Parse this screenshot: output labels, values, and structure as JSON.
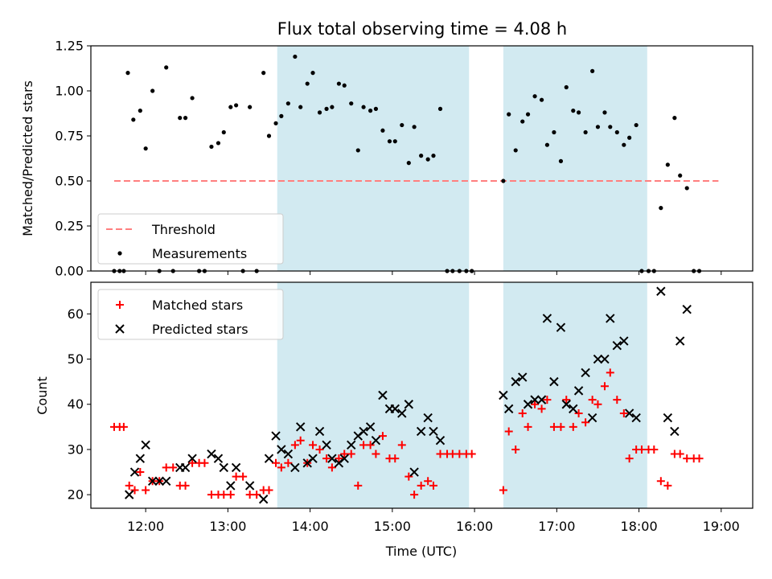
{
  "chart_data": [
    {
      "type": "scatter",
      "title": "Flux total observing time = 4.08 h",
      "ylabel": "Matched/Predicted stars",
      "xlabel": "",
      "ylim": [
        0,
        1.25
      ],
      "xlim": [
        "11:20",
        "19:23"
      ],
      "yticks": [
        "0.00",
        "0.25",
        "0.50",
        "0.75",
        "1.00",
        "1.25"
      ],
      "xticks": [
        "12:00",
        "13:00",
        "14:00",
        "15:00",
        "16:00",
        "17:00",
        "18:00",
        "19:00"
      ],
      "shaded_intervals": [
        [
          "13:36",
          "15:56"
        ],
        [
          "16:21",
          "18:06"
        ]
      ],
      "shade_color": "#add8e6",
      "legend_position": "lower-left",
      "series": [
        {
          "name": "Threshold",
          "style": "dashed-line",
          "color": "#ff7f7f",
          "points": [
            [
              "11:37",
              0.5
            ],
            [
              "18:58",
              0.5
            ]
          ]
        },
        {
          "name": "Measurements",
          "style": "dot",
          "color": "#000000",
          "points": [
            [
              "11:37",
              0.0
            ],
            [
              "11:41",
              0.0
            ],
            [
              "11:44",
              0.0
            ],
            [
              "11:47",
              1.1
            ],
            [
              "11:51",
              0.84
            ],
            [
              "11:56",
              0.89
            ],
            [
              "12:00",
              0.68
            ],
            [
              "12:05",
              1.0
            ],
            [
              "12:10",
              0.0
            ],
            [
              "12:15",
              1.13
            ],
            [
              "12:20",
              0.0
            ],
            [
              "12:25",
              0.85
            ],
            [
              "12:29",
              0.85
            ],
            [
              "12:34",
              0.96
            ],
            [
              "12:39",
              0.0
            ],
            [
              "12:43",
              0.0
            ],
            [
              "12:48",
              0.69
            ],
            [
              "12:53",
              0.71
            ],
            [
              "12:57",
              0.77
            ],
            [
              "13:02",
              0.91
            ],
            [
              "13:06",
              0.92
            ],
            [
              "13:11",
              0.0
            ],
            [
              "13:16",
              0.91
            ],
            [
              "13:21",
              0.0
            ],
            [
              "13:26",
              1.1
            ],
            [
              "13:30",
              0.75
            ],
            [
              "13:35",
              0.82
            ],
            [
              "13:39",
              0.86
            ],
            [
              "13:44",
              0.93
            ],
            [
              "13:49",
              1.19
            ],
            [
              "13:53",
              0.91
            ],
            [
              "13:58",
              1.04
            ],
            [
              "14:02",
              1.1
            ],
            [
              "14:07",
              0.88
            ],
            [
              "14:12",
              0.9
            ],
            [
              "14:16",
              0.91
            ],
            [
              "14:21",
              1.04
            ],
            [
              "14:25",
              1.03
            ],
            [
              "14:30",
              0.93
            ],
            [
              "14:35",
              0.67
            ],
            [
              "14:39",
              0.91
            ],
            [
              "14:44",
              0.89
            ],
            [
              "14:48",
              0.9
            ],
            [
              "14:53",
              0.78
            ],
            [
              "14:58",
              0.72
            ],
            [
              "15:02",
              0.72
            ],
            [
              "15:07",
              0.81
            ],
            [
              "15:12",
              0.6
            ],
            [
              "15:16",
              0.8
            ],
            [
              "15:21",
              0.64
            ],
            [
              "15:26",
              0.62
            ],
            [
              "15:30",
              0.64
            ],
            [
              "15:35",
              0.9
            ],
            [
              "15:40",
              0.0
            ],
            [
              "15:44",
              0.0
            ],
            [
              "15:49",
              0.0
            ],
            [
              "15:54",
              0.0
            ],
            [
              "15:58",
              0.0
            ],
            [
              "16:21",
              0.5
            ],
            [
              "16:25",
              0.87
            ],
            [
              "16:30",
              0.67
            ],
            [
              "16:35",
              0.83
            ],
            [
              "16:39",
              0.87
            ],
            [
              "16:44",
              0.97
            ],
            [
              "16:49",
              0.95
            ],
            [
              "16:53",
              0.7
            ],
            [
              "16:58",
              0.77
            ],
            [
              "17:03",
              0.61
            ],
            [
              "17:07",
              1.02
            ],
            [
              "17:12",
              0.89
            ],
            [
              "17:16",
              0.88
            ],
            [
              "17:21",
              0.77
            ],
            [
              "17:26",
              1.11
            ],
            [
              "17:30",
              0.8
            ],
            [
              "17:35",
              0.88
            ],
            [
              "17:39",
              0.8
            ],
            [
              "17:44",
              0.77
            ],
            [
              "17:49",
              0.7
            ],
            [
              "17:53",
              0.74
            ],
            [
              "17:58",
              0.81
            ],
            [
              "18:02",
              0.0
            ],
            [
              "18:07",
              0.0
            ],
            [
              "18:11",
              0.0
            ],
            [
              "18:16",
              0.35
            ],
            [
              "18:21",
              0.59
            ],
            [
              "18:26",
              0.85
            ],
            [
              "18:30",
              0.53
            ],
            [
              "18:35",
              0.46
            ],
            [
              "18:40",
              0.0
            ],
            [
              "18:44",
              0.0
            ]
          ]
        }
      ]
    },
    {
      "type": "scatter",
      "title": "",
      "ylabel": "Count",
      "xlabel": "Time (UTC)",
      "ylim": [
        17,
        67
      ],
      "xlim": [
        "11:20",
        "19:23"
      ],
      "yticks": [
        "20",
        "30",
        "40",
        "50",
        "60"
      ],
      "xticks": [
        "12:00",
        "13:00",
        "14:00",
        "15:00",
        "16:00",
        "17:00",
        "18:00",
        "19:00"
      ],
      "shaded_intervals": [
        [
          "13:36",
          "15:56"
        ],
        [
          "16:21",
          "18:06"
        ]
      ],
      "shade_color": "#add8e6",
      "legend_position": "top-left",
      "series": [
        {
          "name": "Matched stars",
          "style": "plus",
          "color": "#ff0000",
          "points": [
            [
              "11:37",
              35
            ],
            [
              "11:41",
              35
            ],
            [
              "11:44",
              35
            ],
            [
              "11:48",
              22
            ],
            [
              "11:52",
              21
            ],
            [
              "11:56",
              25
            ],
            [
              "12:00",
              21
            ],
            [
              "12:05",
              23
            ],
            [
              "12:10",
              23
            ],
            [
              "12:15",
              26
            ],
            [
              "12:20",
              26
            ],
            [
              "12:25",
              22
            ],
            [
              "12:29",
              22
            ],
            [
              "12:34",
              27
            ],
            [
              "12:39",
              27
            ],
            [
              "12:43",
              27
            ],
            [
              "12:48",
              20
            ],
            [
              "12:53",
              20
            ],
            [
              "12:57",
              20
            ],
            [
              "13:02",
              20
            ],
            [
              "13:06",
              24
            ],
            [
              "13:11",
              24
            ],
            [
              "13:16",
              20
            ],
            [
              "13:21",
              20
            ],
            [
              "13:26",
              21
            ],
            [
              "13:30",
              21
            ],
            [
              "13:35",
              27
            ],
            [
              "13:39",
              26
            ],
            [
              "13:44",
              27
            ],
            [
              "13:49",
              31
            ],
            [
              "13:53",
              32
            ],
            [
              "13:58",
              27
            ],
            [
              "14:02",
              31
            ],
            [
              "14:07",
              30
            ],
            [
              "14:12",
              28
            ],
            [
              "14:16",
              26
            ],
            [
              "14:21",
              28
            ],
            [
              "14:25",
              29
            ],
            [
              "14:30",
              29
            ],
            [
              "14:35",
              22
            ],
            [
              "14:39",
              31
            ],
            [
              "14:44",
              31
            ],
            [
              "14:48",
              29
            ],
            [
              "14:53",
              33
            ],
            [
              "14:58",
              28
            ],
            [
              "15:02",
              28
            ],
            [
              "15:07",
              31
            ],
            [
              "15:12",
              24
            ],
            [
              "15:16",
              20
            ],
            [
              "15:21",
              22
            ],
            [
              "15:26",
              23
            ],
            [
              "15:30",
              22
            ],
            [
              "15:35",
              29
            ],
            [
              "15:40",
              29
            ],
            [
              "15:44",
              29
            ],
            [
              "15:49",
              29
            ],
            [
              "15:54",
              29
            ],
            [
              "15:58",
              29
            ],
            [
              "16:21",
              21
            ],
            [
              "16:25",
              34
            ],
            [
              "16:30",
              30
            ],
            [
              "16:35",
              38
            ],
            [
              "16:39",
              35
            ],
            [
              "16:44",
              40
            ],
            [
              "16:49",
              39
            ],
            [
              "16:53",
              41
            ],
            [
              "16:58",
              35
            ],
            [
              "17:03",
              35
            ],
            [
              "17:07",
              41
            ],
            [
              "17:12",
              35
            ],
            [
              "17:16",
              38
            ],
            [
              "17:21",
              36
            ],
            [
              "17:26",
              41
            ],
            [
              "17:30",
              40
            ],
            [
              "17:35",
              44
            ],
            [
              "17:39",
              47
            ],
            [
              "17:44",
              41
            ],
            [
              "17:49",
              38
            ],
            [
              "17:53",
              28
            ],
            [
              "17:58",
              30
            ],
            [
              "18:02",
              30
            ],
            [
              "18:07",
              30
            ],
            [
              "18:11",
              30
            ],
            [
              "18:16",
              23
            ],
            [
              "18:21",
              22
            ],
            [
              "18:26",
              29
            ],
            [
              "18:30",
              29
            ],
            [
              "18:35",
              28
            ],
            [
              "18:40",
              28
            ],
            [
              "18:44",
              28
            ]
          ]
        },
        {
          "name": "Predicted stars",
          "style": "cross",
          "color": "#000000",
          "points": [
            [
              "11:48",
              20
            ],
            [
              "11:52",
              25
            ],
            [
              "11:56",
              28
            ],
            [
              "12:00",
              31
            ],
            [
              "12:05",
              23
            ],
            [
              "12:10",
              23
            ],
            [
              "12:15",
              23
            ],
            [
              "12:25",
              26
            ],
            [
              "12:29",
              26
            ],
            [
              "12:34",
              28
            ],
            [
              "12:48",
              29
            ],
            [
              "12:53",
              28
            ],
            [
              "12:57",
              26
            ],
            [
              "13:02",
              22
            ],
            [
              "13:06",
              26
            ],
            [
              "13:16",
              22
            ],
            [
              "13:26",
              19
            ],
            [
              "13:30",
              28
            ],
            [
              "13:35",
              33
            ],
            [
              "13:39",
              30
            ],
            [
              "13:44",
              29
            ],
            [
              "13:49",
              26
            ],
            [
              "13:53",
              35
            ],
            [
              "13:58",
              27
            ],
            [
              "14:02",
              28
            ],
            [
              "14:07",
              34
            ],
            [
              "14:12",
              31
            ],
            [
              "14:16",
              28
            ],
            [
              "14:21",
              27
            ],
            [
              "14:25",
              28
            ],
            [
              "14:30",
              31
            ],
            [
              "14:35",
              33
            ],
            [
              "14:39",
              34
            ],
            [
              "14:44",
              35
            ],
            [
              "14:48",
              32
            ],
            [
              "14:53",
              42
            ],
            [
              "14:58",
              39
            ],
            [
              "15:02",
              39
            ],
            [
              "15:07",
              38
            ],
            [
              "15:12",
              40
            ],
            [
              "15:16",
              25
            ],
            [
              "15:21",
              34
            ],
            [
              "15:26",
              37
            ],
            [
              "15:30",
              34
            ],
            [
              "15:35",
              32
            ],
            [
              "16:21",
              42
            ],
            [
              "16:25",
              39
            ],
            [
              "16:30",
              45
            ],
            [
              "16:35",
              46
            ],
            [
              "16:39",
              40
            ],
            [
              "16:44",
              41
            ],
            [
              "16:49",
              41
            ],
            [
              "16:53",
              59
            ],
            [
              "16:58",
              45
            ],
            [
              "17:03",
              57
            ],
            [
              "17:07",
              40
            ],
            [
              "17:12",
              39
            ],
            [
              "17:16",
              43
            ],
            [
              "17:21",
              47
            ],
            [
              "17:26",
              37
            ],
            [
              "17:30",
              50
            ],
            [
              "17:35",
              50
            ],
            [
              "17:39",
              59
            ],
            [
              "17:44",
              53
            ],
            [
              "17:49",
              54
            ],
            [
              "17:53",
              38
            ],
            [
              "17:58",
              37
            ],
            [
              "18:16",
              65
            ],
            [
              "18:21",
              37
            ],
            [
              "18:26",
              34
            ],
            [
              "18:30",
              54
            ],
            [
              "18:35",
              61
            ]
          ]
        }
      ]
    }
  ]
}
